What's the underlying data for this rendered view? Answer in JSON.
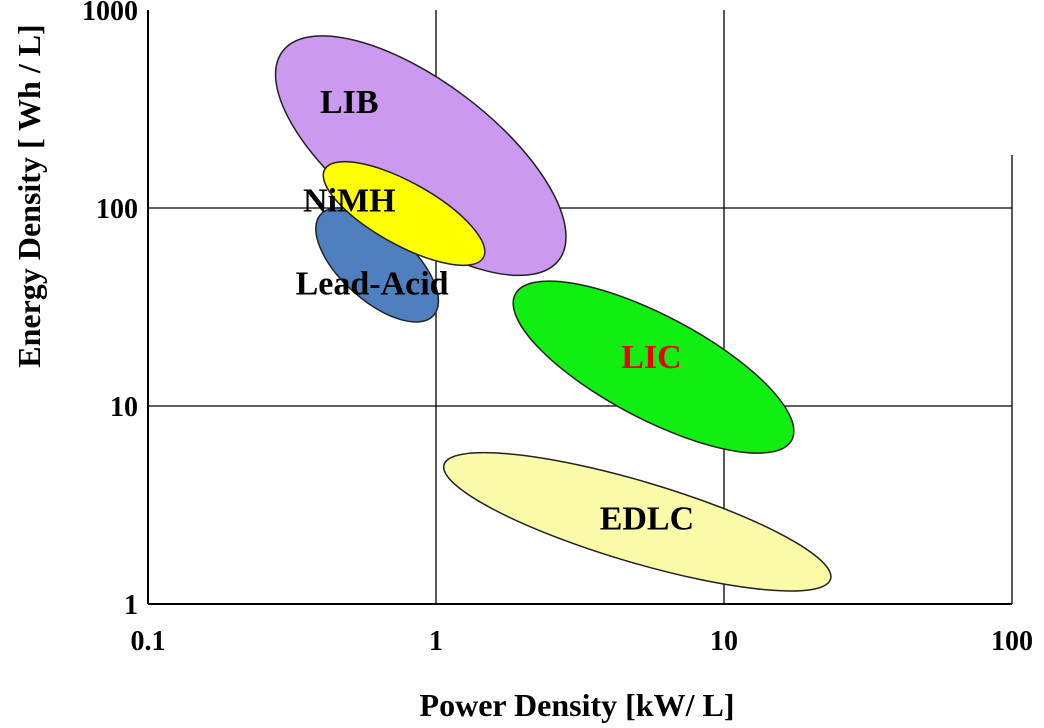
{
  "chart_data": {
    "type": "scatter",
    "title": "",
    "xlabel": "Power Density [kW/ L]",
    "ylabel": "Energy Density [ Wh / L]",
    "x_scale": "log",
    "y_scale": "log",
    "xlim": [
      0.1,
      100
    ],
    "ylim": [
      1,
      1000
    ],
    "x_ticks": [
      "0.1",
      "1",
      "10",
      "100"
    ],
    "y_ticks": [
      "1",
      "10",
      "100",
      "1000"
    ],
    "grid": true,
    "regions": [
      {
        "name": "LIB",
        "x_range": [
          0.28,
          2.8
        ],
        "y_range": [
          52,
          650
        ],
        "color": "#cc99f0",
        "label_color": "#000000",
        "label_x": 0.5,
        "label_y": 330
      },
      {
        "name": "Lead-Acid",
        "x_range": [
          0.39,
          1.0
        ],
        "y_range": [
          28,
          95
        ],
        "color": "#4f7fbf",
        "label_color": "#000000",
        "label_x": 0.6,
        "label_y": 40
      },
      {
        "name": "NiMH",
        "x_range": [
          0.4,
          1.5
        ],
        "y_range": [
          55,
          160
        ],
        "color": "#ffff00",
        "label_color": "#000000",
        "label_x": 0.5,
        "label_y": 105
      },
      {
        "name": "LIC",
        "x_range": [
          1.8,
          18
        ],
        "y_range": [
          6.5,
          38
        ],
        "color": "#11ee11",
        "label_color": "#ee0000",
        "label_x": 5.6,
        "label_y": 17
      },
      {
        "name": "EDLC",
        "x_range": [
          1.0,
          25
        ],
        "y_range": [
          1.3,
          5.2
        ],
        "color": "#fafaa8",
        "label_color": "#000000",
        "label_x": 5.4,
        "label_y": 2.6
      }
    ]
  }
}
